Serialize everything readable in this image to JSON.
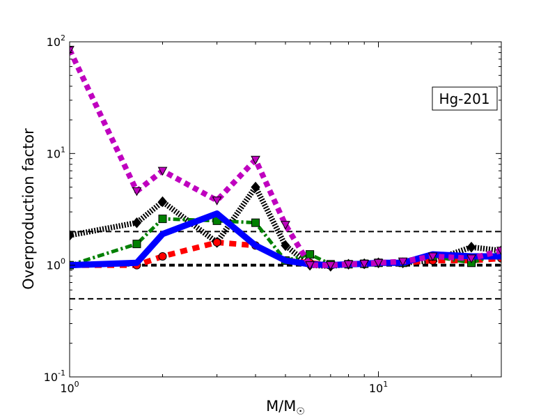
{
  "chart_data": {
    "type": "line",
    "xscale": "log",
    "yscale": "log",
    "xlim": [
      1,
      25
    ],
    "ylim": [
      0.1,
      100
    ],
    "grid": false,
    "xlabel": {
      "main": "M/M",
      "sub": "☉"
    },
    "ylabel": "Overproduction factor",
    "x_ticks": [
      {
        "value": 1,
        "base": "10",
        "exp": "0"
      },
      {
        "value": 10,
        "base": "10",
        "exp": "1"
      }
    ],
    "y_ticks": [
      {
        "value": 0.1,
        "base": "10",
        "exp": "-1"
      },
      {
        "value": 1,
        "base": "10",
        "exp": "0"
      },
      {
        "value": 10,
        "base": "10",
        "exp": "1"
      },
      {
        "value": 100,
        "base": "10",
        "exp": "2"
      }
    ],
    "annotation": "Hg-201",
    "reference_lines": [
      {
        "y": 0.5,
        "style": "dashed",
        "width": 2,
        "color": "#000000"
      },
      {
        "y": 1.0,
        "style": "dashed",
        "width": 4,
        "color": "#000000"
      },
      {
        "y": 2.0,
        "style": "dashed",
        "width": 2,
        "color": "#000000"
      }
    ],
    "series": [
      {
        "color": "#000000",
        "dash": "2 2",
        "width": 8,
        "marker": "diamond",
        "x": [
          1,
          1.65,
          2,
          3,
          4,
          5,
          6,
          7,
          8,
          9,
          10,
          12,
          15,
          20,
          25
        ],
        "y": [
          1.85,
          2.4,
          3.7,
          1.6,
          5.0,
          1.5,
          1.0,
          0.98,
          1.02,
          1.03,
          1.05,
          1.05,
          1.1,
          1.45,
          1.35
        ]
      },
      {
        "color": "#ff0000",
        "dash": "10 8",
        "width": 8,
        "marker": "circle",
        "x": [
          1,
          1.65,
          2,
          3,
          4,
          5,
          6,
          7,
          8,
          9,
          10,
          12,
          15,
          20,
          25
        ],
        "y": [
          1.0,
          1.0,
          1.2,
          1.6,
          1.5,
          1.1,
          1.05,
          1.0,
          1.02,
          1.02,
          1.05,
          1.05,
          1.1,
          1.1,
          1.15
        ]
      },
      {
        "color": "#008000",
        "dash": "10 4 3 4",
        "width": 5,
        "marker": "square",
        "x": [
          1,
          1.65,
          2,
          3,
          4,
          5,
          6,
          7,
          8,
          9,
          10,
          12,
          15,
          20,
          25
        ],
        "y": [
          1.0,
          1.55,
          2.6,
          2.5,
          2.4,
          1.1,
          1.25,
          1.02,
          1.02,
          1.03,
          1.05,
          1.05,
          1.2,
          1.05,
          1.3
        ]
      },
      {
        "color": "#0000ff",
        "dash": "",
        "width": 9,
        "marker": "none",
        "x": [
          1,
          1.65,
          2,
          3,
          4,
          5,
          6,
          7,
          8,
          9,
          10,
          12,
          15,
          20,
          25
        ],
        "y": [
          1.0,
          1.05,
          1.9,
          2.9,
          1.5,
          1.1,
          1.02,
          1.0,
          1.02,
          1.03,
          1.05,
          1.05,
          1.25,
          1.2,
          1.2
        ]
      },
      {
        "color": "#bf00bf",
        "dash": "8 6",
        "width": 8,
        "marker": "triangle-down",
        "x": [
          1,
          1.65,
          2,
          3,
          4,
          5,
          6,
          7,
          8,
          9,
          10,
          12,
          15,
          20,
          25
        ],
        "y": [
          85,
          4.6,
          7.0,
          3.8,
          8.8,
          2.3,
          1.0,
          1.0,
          1.02,
          1.03,
          1.05,
          1.08,
          1.2,
          1.15,
          1.35
        ]
      }
    ]
  }
}
